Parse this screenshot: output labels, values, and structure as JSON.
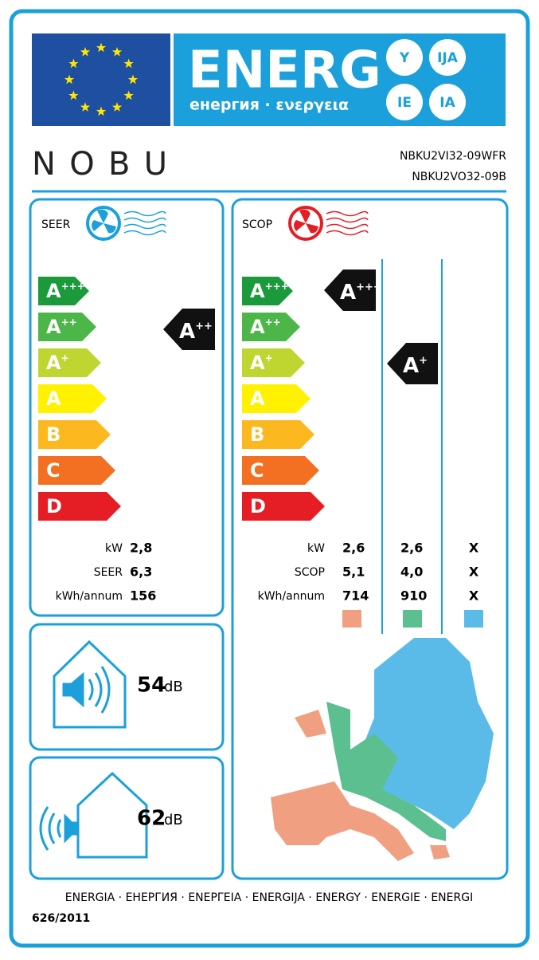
{
  "header": {
    "energy_word": "ENERG",
    "subtitle": "енергия · ενεργεια",
    "suffixes": [
      "Y",
      "IJA",
      "IE",
      "IA"
    ]
  },
  "brand": "NOBU",
  "models": [
    "NBKU2VI32-09WFR",
    "NBKU2VO32-09B"
  ],
  "classes": [
    {
      "letter": "A",
      "plus": "+++"
    },
    {
      "letter": "A",
      "plus": "++"
    },
    {
      "letter": "A",
      "plus": "+"
    },
    {
      "letter": "A",
      "plus": ""
    },
    {
      "letter": "B",
      "plus": ""
    },
    {
      "letter": "C",
      "plus": ""
    },
    {
      "letter": "D",
      "plus": ""
    }
  ],
  "cooling": {
    "label": "SEER",
    "rating": {
      "letter": "A",
      "plus": "++"
    },
    "rows": [
      {
        "unit": "kW",
        "value": "2,8"
      },
      {
        "unit": "SEER",
        "value": "6,3"
      },
      {
        "unit": "kWh/annum",
        "value": "156"
      }
    ]
  },
  "heating": {
    "label": "SCOP",
    "ratings": [
      {
        "letter": "A",
        "plus": "+++"
      },
      {
        "letter": "A",
        "plus": "+"
      }
    ],
    "rows": [
      {
        "unit": "kW",
        "values": [
          "2,6",
          "2,6",
          "X"
        ]
      },
      {
        "unit": "SCOP",
        "values": [
          "5,1",
          "4,0",
          "X"
        ]
      },
      {
        "unit": "kWh/annum",
        "values": [
          "714",
          "910",
          "X"
        ]
      }
    ]
  },
  "noise_indoor": {
    "value": 54,
    "unit": "dB"
  },
  "noise_outdoor": {
    "value": 62,
    "unit": "dB"
  },
  "footer": {
    "languages": "ENERGIA · ЕНЕРГИЯ · ΕΝΕΡΓΕΙΑ · ENERGIJA · ENERGY · ENERGIE · ENERGI",
    "regulation": "626/2011"
  }
}
